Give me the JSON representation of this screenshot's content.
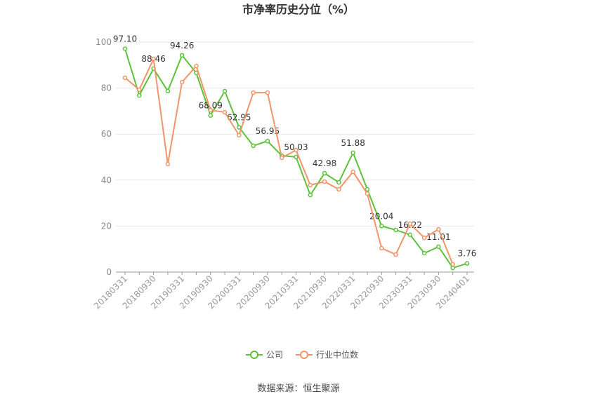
{
  "chart_data": {
    "type": "line",
    "title": "市净率历史分位（%）",
    "categories": [
      "20180331",
      null,
      "20180930",
      null,
      "20190331",
      null,
      "20190930",
      null,
      "20200331",
      null,
      "20200930",
      null,
      "20210331",
      null,
      "20210930",
      null,
      "20220331",
      null,
      "20220930",
      null,
      "20230331",
      null,
      "20230930",
      null,
      "20240401"
    ],
    "series": [
      {
        "name": "公司",
        "color": "#5cc23a",
        "values": [
          97.1,
          76.8,
          88.46,
          78.7,
          94.26,
          86.6,
          68.09,
          78.7,
          62.95,
          54.9,
          56.95,
          50.6,
          50.03,
          33.5,
          42.98,
          39.0,
          51.88,
          36.0,
          20.04,
          18.3,
          16.22,
          8.2,
          11.01,
          1.8,
          3.76
        ],
        "value_labels": [
          "97.10",
          null,
          "88.46",
          null,
          "94.26",
          null,
          "68.09",
          null,
          "62.95",
          null,
          "56.95",
          null,
          "50.03",
          null,
          "42.98",
          null,
          "51.88",
          null,
          "20.04",
          null,
          "16.22",
          null,
          "11.01",
          null,
          "3.76"
        ]
      },
      {
        "name": "行业中位数",
        "color": "#f0956a",
        "values": [
          84.5,
          79.3,
          92.7,
          47.0,
          82.6,
          89.6,
          70.4,
          69.5,
          59.5,
          78.0,
          78.0,
          49.7,
          53.0,
          37.8,
          39.3,
          36.0,
          43.6,
          34.1,
          10.4,
          7.6,
          21.0,
          14.9,
          18.6,
          3.4,
          null
        ]
      }
    ],
    "ylim": [
      0,
      100
    ],
    "yticks": [
      0,
      20,
      40,
      60,
      80,
      100
    ],
    "grid": true,
    "source": "数据来源：恒生聚源"
  }
}
